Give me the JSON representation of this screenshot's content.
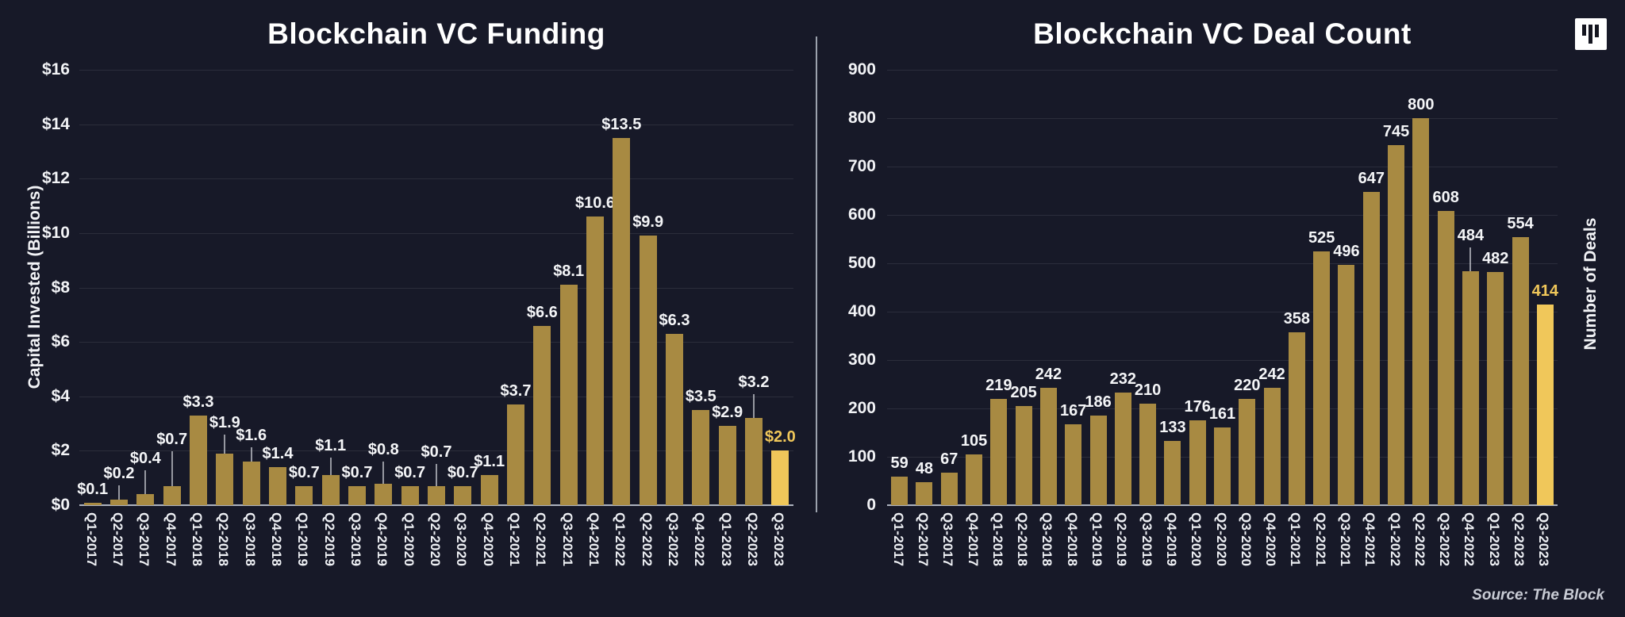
{
  "page": {
    "background": "#171928",
    "source_note": "Source: The Block",
    "logo": "the-block-logo"
  },
  "chart_data": [
    {
      "type": "bar",
      "title": "Blockchain VC Funding",
      "ylabel": "Capital Invested (Billions)",
      "ylabel_side": "left",
      "xlabel": "",
      "categories": [
        "Q1-2017",
        "Q2-2017",
        "Q3-2017",
        "Q4-2017",
        "Q1-2018",
        "Q2-2018",
        "Q3-2018",
        "Q4-2018",
        "Q1-2019",
        "Q2-2019",
        "Q3-2019",
        "Q4-2019",
        "Q1-2020",
        "Q2-2020",
        "Q3-2020",
        "Q4-2020",
        "Q1-2021",
        "Q2-2021",
        "Q3-2021",
        "Q4-2021",
        "Q1-2022",
        "Q2-2022",
        "Q3-2022",
        "Q4-2022",
        "Q1-2023",
        "Q2-2023",
        "Q3-2023"
      ],
      "values": [
        0.1,
        0.2,
        0.4,
        0.7,
        3.3,
        1.9,
        1.6,
        1.4,
        0.7,
        1.1,
        0.7,
        0.8,
        0.7,
        0.7,
        0.7,
        1.1,
        3.7,
        6.6,
        8.1,
        10.6,
        13.5,
        9.9,
        6.3,
        3.5,
        2.9,
        3.2,
        2.0
      ],
      "value_labels": [
        "$0.1",
        "$0.2",
        "$0.4",
        "$0.7",
        "$3.3",
        "$1.9",
        "$1.6",
        "$1.4",
        "$0.7",
        "$1.1",
        "$0.7",
        "$0.8",
        "$0.7",
        "$0.7",
        "$0.7",
        "$1.1",
        "$3.7",
        "$6.6",
        "$8.1",
        "$10.6",
        "$13.5",
        "$9.9",
        "$6.3",
        "$3.5",
        "$2.9",
        "$3.2",
        "$2.0"
      ],
      "ylim": [
        0,
        16
      ],
      "ytick_step": 2,
      "ytick_labels": [
        "$0",
        "$2",
        "$4",
        "$6",
        "$8",
        "$10",
        "$12",
        "$14",
        "$16"
      ],
      "grid": true,
      "legend": "none",
      "bar_color": "#a88a42",
      "highlight_index": 26,
      "highlight_color": "#f0c75a",
      "raised_labels": {
        "1": 18,
        "2": 30,
        "3": 44,
        "5": 24,
        "6": 18,
        "9": 22,
        "11": 28,
        "13": 28,
        "25": 30
      }
    },
    {
      "type": "bar",
      "title": "Blockchain VC Deal Count",
      "ylabel": "Number of Deals",
      "ylabel_side": "right",
      "xlabel": "",
      "categories": [
        "Q1-2017",
        "Q2-2017",
        "Q3-2017",
        "Q4-2017",
        "Q1-2018",
        "Q2-2018",
        "Q3-2018",
        "Q4-2018",
        "Q1-2019",
        "Q2-2019",
        "Q3-2019",
        "Q4-2019",
        "Q1-2020",
        "Q2-2020",
        "Q3-2020",
        "Q4-2020",
        "Q1-2021",
        "Q2-2021",
        "Q3-2021",
        "Q4-2021",
        "Q1-2022",
        "Q2-2022",
        "Q3-2022",
        "Q4-2022",
        "Q1-2023",
        "Q2-2023",
        "Q3-2023"
      ],
      "values": [
        59,
        48,
        67,
        105,
        219,
        205,
        242,
        167,
        186,
        232,
        210,
        133,
        176,
        161,
        220,
        242,
        358,
        525,
        496,
        647,
        745,
        800,
        608,
        484,
        482,
        554,
        414
      ],
      "value_labels": [
        "59",
        "48",
        "67",
        "105",
        "219",
        "205",
        "242",
        "167",
        "186",
        "232",
        "210",
        "133",
        "176",
        "161",
        "220",
        "242",
        "358",
        "525",
        "496",
        "647",
        "745",
        "800",
        "608",
        "484",
        "482",
        "554",
        "414"
      ],
      "ylim": [
        0,
        900
      ],
      "ytick_step": 100,
      "ytick_labels": [
        "0",
        "100",
        "200",
        "300",
        "400",
        "500",
        "600",
        "700",
        "800",
        "900"
      ],
      "grid": true,
      "legend": "none",
      "bar_color": "#a88a42",
      "highlight_index": 26,
      "highlight_color": "#f0c75a",
      "raised_labels": {
        "23": 30
      }
    }
  ]
}
